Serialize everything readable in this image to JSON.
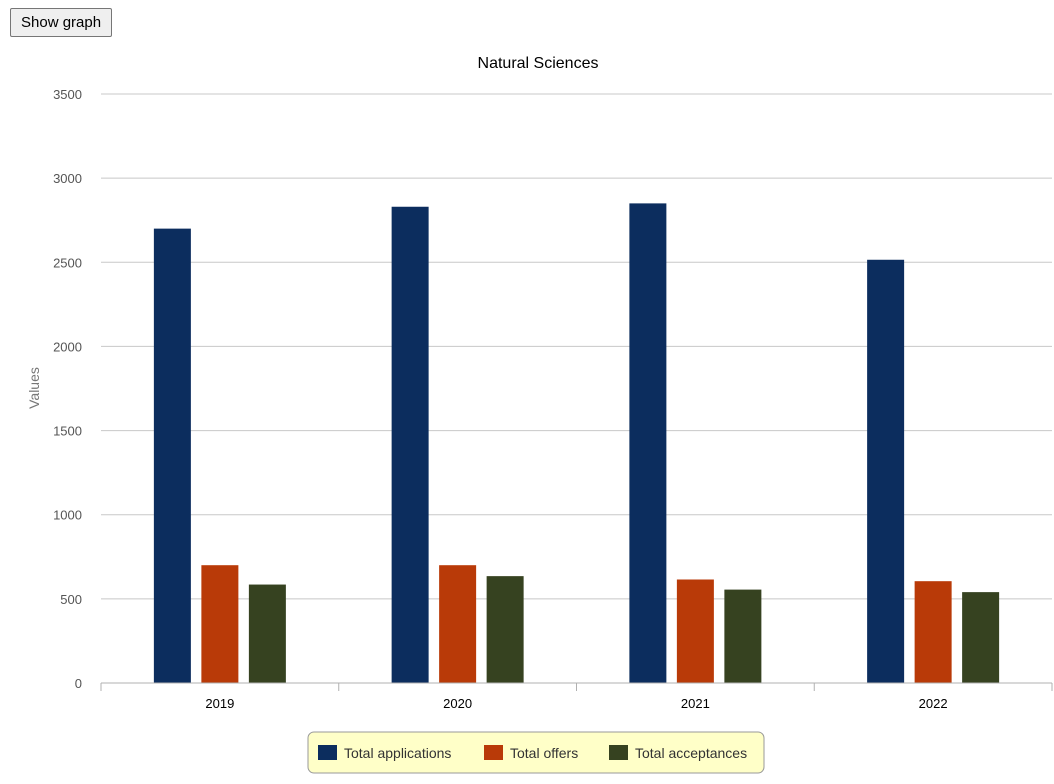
{
  "toolbar": {
    "show_graph_label": "Show graph"
  },
  "chart_data": {
    "type": "bar",
    "title": "Natural Sciences",
    "xlabel": "",
    "ylabel": "Values",
    "categories": [
      "2019",
      "2020",
      "2021",
      "2022"
    ],
    "ylim": [
      0,
      3500
    ],
    "yticks": [
      0,
      500,
      1000,
      1500,
      2000,
      2500,
      3000,
      3500
    ],
    "grid": true,
    "legend_position": "bottom",
    "series": [
      {
        "name": "Total applications",
        "color": "#0c2d5e",
        "values": [
          2700,
          2830,
          2850,
          2515
        ]
      },
      {
        "name": "Total offers",
        "color": "#b93a08",
        "values": [
          700,
          700,
          615,
          605
        ]
      },
      {
        "name": "Total acceptances",
        "color": "#364220",
        "values": [
          585,
          635,
          555,
          540
        ]
      }
    ]
  }
}
